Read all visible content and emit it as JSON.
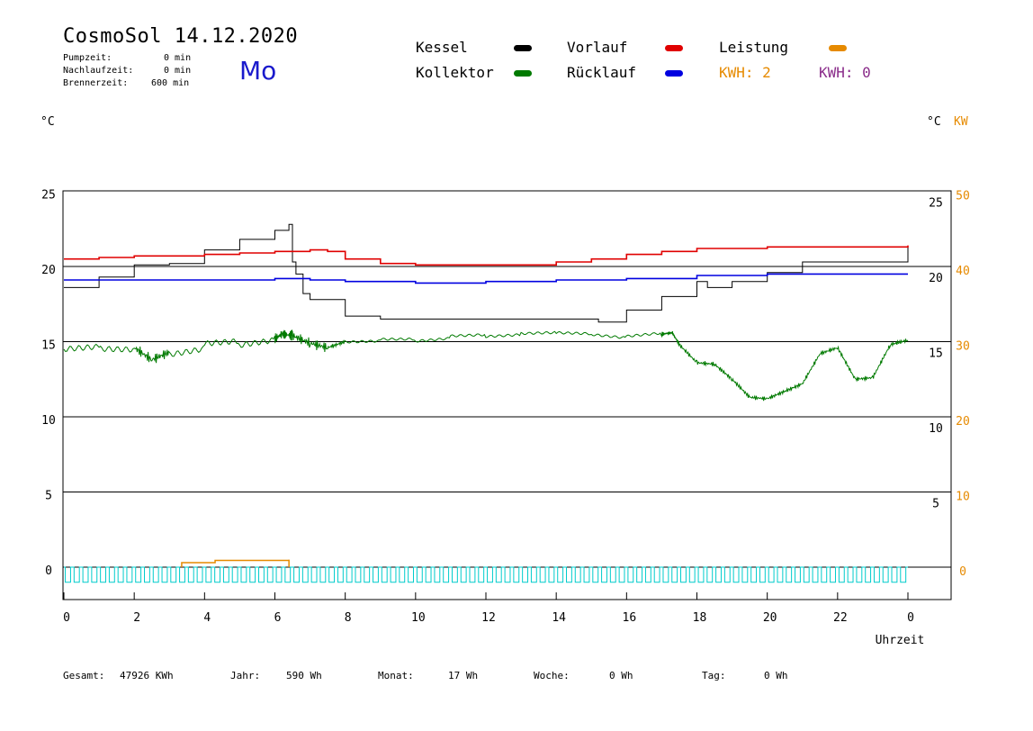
{
  "header": {
    "title": "CosmoSol 14.12.2020",
    "weekday": "Mo",
    "stats": [
      {
        "label": "Pumpzeit:",
        "value": "0 min"
      },
      {
        "label": "Nachlaufzeit:",
        "value": "0 min"
      },
      {
        "label": "Brennerzeit:",
        "value": "600 min"
      }
    ]
  },
  "legend": {
    "kessel": "Kessel",
    "vorlauf": "Vorlauf",
    "leistung": "Leistung",
    "kollektor": "Kollektor",
    "ruecklauf": "Rücklauf",
    "kwh1": "KWH: 2",
    "kwh2": "KWH: 0"
  },
  "units": {
    "left": "°C",
    "right_c": "°C",
    "right_kw": "KW"
  },
  "colors": {
    "kessel": "#000000",
    "vorlauf": "#e00000",
    "ruecklauf": "#0000e0",
    "kollektor": "#007a00",
    "leistung": "#e68a00",
    "pump": "#00cccc",
    "kwh2": "#8a2c8a"
  },
  "footer": [
    {
      "label": "Gesamt:",
      "value": "47926 KWh"
    },
    {
      "label": "Jahr:",
      "value": "590 Wh"
    },
    {
      "label": "Monat:",
      "value": "17 Wh"
    },
    {
      "label": "Woche:",
      "value": "0 Wh"
    },
    {
      "label": "Tag:",
      "value": "0 Wh"
    }
  ],
  "chart_data": {
    "type": "line",
    "xlabel": "Uhrzeit",
    "x_ticks": [
      "0",
      "2",
      "4",
      "6",
      "8",
      "10",
      "12",
      "14",
      "16",
      "18",
      "20",
      "22",
      "0"
    ],
    "y_left_ticks": [
      "25",
      "20",
      "15",
      "10",
      "5",
      "0"
    ],
    "y_right_c_ticks": [
      "25",
      "20",
      "15",
      "10",
      "5"
    ],
    "y_right_kw_ticks": [
      "50",
      "40",
      "30",
      "20",
      "10",
      "0"
    ],
    "ylim": [
      -2,
      25
    ],
    "xlim": [
      0,
      24
    ],
    "grid": true,
    "series": [
      {
        "name": "Kessel",
        "key": "kessel",
        "x": [
          0,
          1,
          2,
          3,
          4,
          5,
          6,
          6.4,
          6.5,
          6.6,
          6.8,
          7,
          7.5,
          8,
          9,
          10,
          12,
          14,
          15,
          15.2,
          16,
          17,
          18,
          18.3,
          19,
          20,
          21,
          22,
          23,
          24
        ],
        "y": [
          18.6,
          19.3,
          20.1,
          20.2,
          21.1,
          21.8,
          22.4,
          22.8,
          20.3,
          19.5,
          18.2,
          17.8,
          17.8,
          16.7,
          16.5,
          16.5,
          16.5,
          16.5,
          16.5,
          16.3,
          17.1,
          18,
          19,
          18.6,
          19,
          19.6,
          20.3,
          20.3,
          20.3,
          21.3
        ]
      },
      {
        "name": "Vorlauf",
        "key": "vorlauf",
        "x": [
          0,
          1,
          2,
          3,
          4,
          5,
          6,
          7,
          7.5,
          8,
          9,
          10,
          12,
          14,
          15,
          16,
          17,
          18,
          20,
          22,
          24
        ],
        "y": [
          20.5,
          20.6,
          20.7,
          20.7,
          20.8,
          20.9,
          21,
          21.1,
          21,
          20.5,
          20.2,
          20.1,
          20.1,
          20.3,
          20.5,
          20.8,
          21,
          21.2,
          21.3,
          21.3,
          21.4
        ]
      },
      {
        "name": "Rücklauf",
        "key": "ruecklauf",
        "x": [
          0,
          2,
          4,
          6,
          7,
          8,
          10,
          12,
          14,
          16,
          18,
          20,
          22,
          24
        ],
        "y": [
          19.1,
          19.1,
          19.1,
          19.2,
          19.1,
          19,
          18.9,
          19,
          19.1,
          19.2,
          19.4,
          19.5,
          19.5,
          19.5
        ]
      },
      {
        "name": "Kollektor",
        "key": "kollektor",
        "x": [
          0,
          1,
          2,
          2.5,
          3,
          4,
          5,
          6,
          6.2,
          6.5,
          7,
          7.5,
          8,
          9,
          10,
          11,
          12,
          13,
          14,
          15,
          16,
          17,
          17.3,
          17.5,
          18,
          18.5,
          19,
          19.5,
          20,
          20.5,
          21,
          21.5,
          22,
          22.5,
          23,
          23.5,
          24
        ],
        "y": [
          14.5,
          14.6,
          14.6,
          13.8,
          14.3,
          14.7,
          14.9,
          15.2,
          15.5,
          15.4,
          14.9,
          14.6,
          15,
          15.1,
          15.1,
          15.3,
          15.4,
          15.5,
          15.6,
          15.5,
          15.3,
          15.5,
          15.6,
          14.8,
          13.6,
          13.5,
          12.5,
          11.3,
          11.2,
          11.7,
          12.2,
          14.2,
          14.6,
          12.5,
          12.6,
          14.8,
          15.1
        ]
      },
      {
        "name": "Leistung",
        "key": "leistung",
        "x": [
          3.35,
          4.3,
          5.2,
          6.4
        ],
        "y": [
          0.3,
          0.45,
          0.45,
          0.5
        ]
      }
    ]
  }
}
